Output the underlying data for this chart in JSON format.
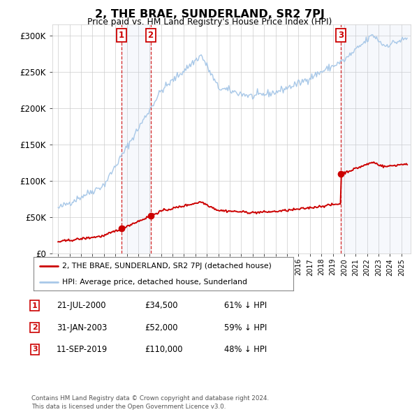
{
  "title": "2, THE BRAE, SUNDERLAND, SR2 7PJ",
  "subtitle": "Price paid vs. HM Land Registry's House Price Index (HPI)",
  "ylabel_ticks": [
    "£0",
    "£50K",
    "£100K",
    "£150K",
    "£200K",
    "£250K",
    "£300K"
  ],
  "ytick_values": [
    0,
    50000,
    100000,
    150000,
    200000,
    250000,
    300000
  ],
  "ylim": [
    0,
    315000
  ],
  "xlim_start": 1994.5,
  "xlim_end": 2025.8,
  "hpi_color": "#a8c8e8",
  "price_color": "#cc0000",
  "vline_color": "#cc0000",
  "sale_points": [
    {
      "year": 2000.55,
      "price": 34500,
      "label": "1"
    },
    {
      "year": 2003.08,
      "price": 52000,
      "label": "2"
    },
    {
      "year": 2019.7,
      "price": 110000,
      "label": "3"
    }
  ],
  "legend_entries": [
    {
      "label": "2, THE BRAE, SUNDERLAND, SR2 7PJ (detached house)",
      "color": "#cc0000"
    },
    {
      "label": "HPI: Average price, detached house, Sunderland",
      "color": "#a8c8e8"
    }
  ],
  "table_rows": [
    {
      "num": "1",
      "date": "21-JUL-2000",
      "price": "£34,500",
      "hpi": "61% ↓ HPI"
    },
    {
      "num": "2",
      "date": "31-JAN-2003",
      "price": "£52,000",
      "hpi": "59% ↓ HPI"
    },
    {
      "num": "3",
      "date": "11-SEP-2019",
      "price": "£110,000",
      "hpi": "48% ↓ HPI"
    }
  ],
  "footnote": "Contains HM Land Registry data © Crown copyright and database right 2024.\nThis data is licensed under the Open Government Licence v3.0.",
  "background_color": "#ffffff",
  "plot_bg_color": "#ffffff",
  "grid_color": "#cccccc"
}
